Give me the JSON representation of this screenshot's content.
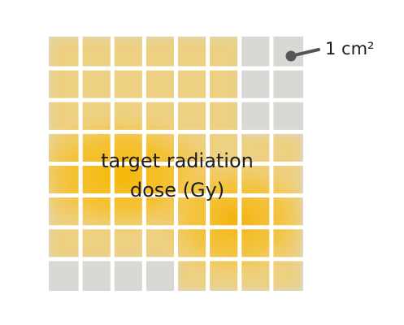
{
  "diagram": {
    "center_label_line1": "target radiation",
    "center_label_line2": "dose (Gy)",
    "unit_label": "1 cm²",
    "colors": {
      "cell_gray": "#d9d8d5",
      "dose_yellow": "#f3b611",
      "gridline": "#ffffff",
      "text": "#1e1e1e",
      "callout": "#555555"
    },
    "grid": {
      "rows": 8,
      "cols": 8,
      "dose_mask": [
        [
          1,
          1,
          1,
          1,
          1,
          1,
          0,
          0
        ],
        [
          1,
          1,
          1,
          1,
          1,
          1,
          0,
          0
        ],
        [
          1,
          1,
          1,
          1,
          1,
          1,
          0,
          0
        ],
        [
          1,
          1,
          1,
          1,
          1,
          1,
          1,
          1
        ],
        [
          1,
          1,
          1,
          1,
          1,
          1,
          1,
          1
        ],
        [
          1,
          1,
          1,
          1,
          1,
          1,
          1,
          1
        ],
        [
          1,
          1,
          1,
          1,
          1,
          1,
          1,
          1
        ],
        [
          0,
          0,
          0,
          0,
          1,
          1,
          1,
          1
        ]
      ]
    }
  }
}
